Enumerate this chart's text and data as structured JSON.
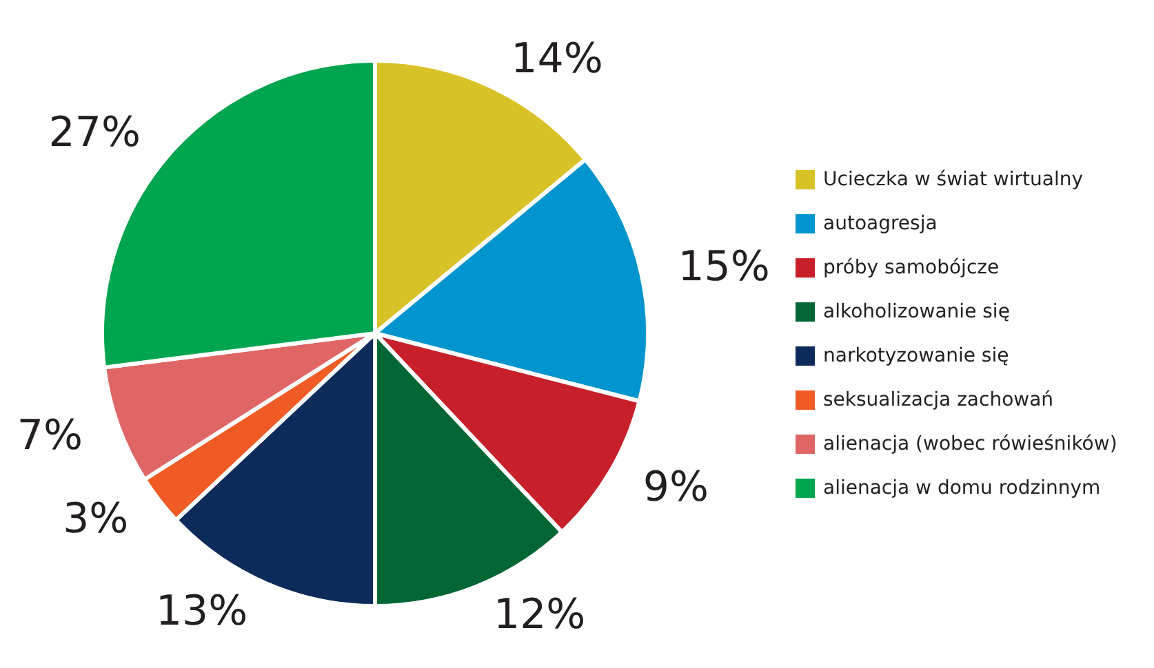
{
  "chart_data": {
    "type": "pie",
    "categories": [
      "Ucieczka w świat wirtualny",
      "autoagresja",
      "próby samobójcze",
      "alkoholizowanie się",
      "narkotyzowanie się",
      "seksualizacja zachowań",
      "alienacja (wobec rówieśników)",
      "alienacja w domu rodzinnym"
    ],
    "values": [
      14,
      15,
      9,
      12,
      13,
      3,
      7,
      27
    ],
    "value_labels": [
      "14%",
      "15%",
      "9%",
      "12%",
      "13%",
      "3%",
      "7%",
      "27%"
    ],
    "colors": [
      "#d9c227",
      "#0095cf",
      "#c8202a",
      "#006634",
      "#0c2a5a",
      "#f05a24",
      "#e06666",
      "#00a54f"
    ],
    "legend": "right"
  }
}
